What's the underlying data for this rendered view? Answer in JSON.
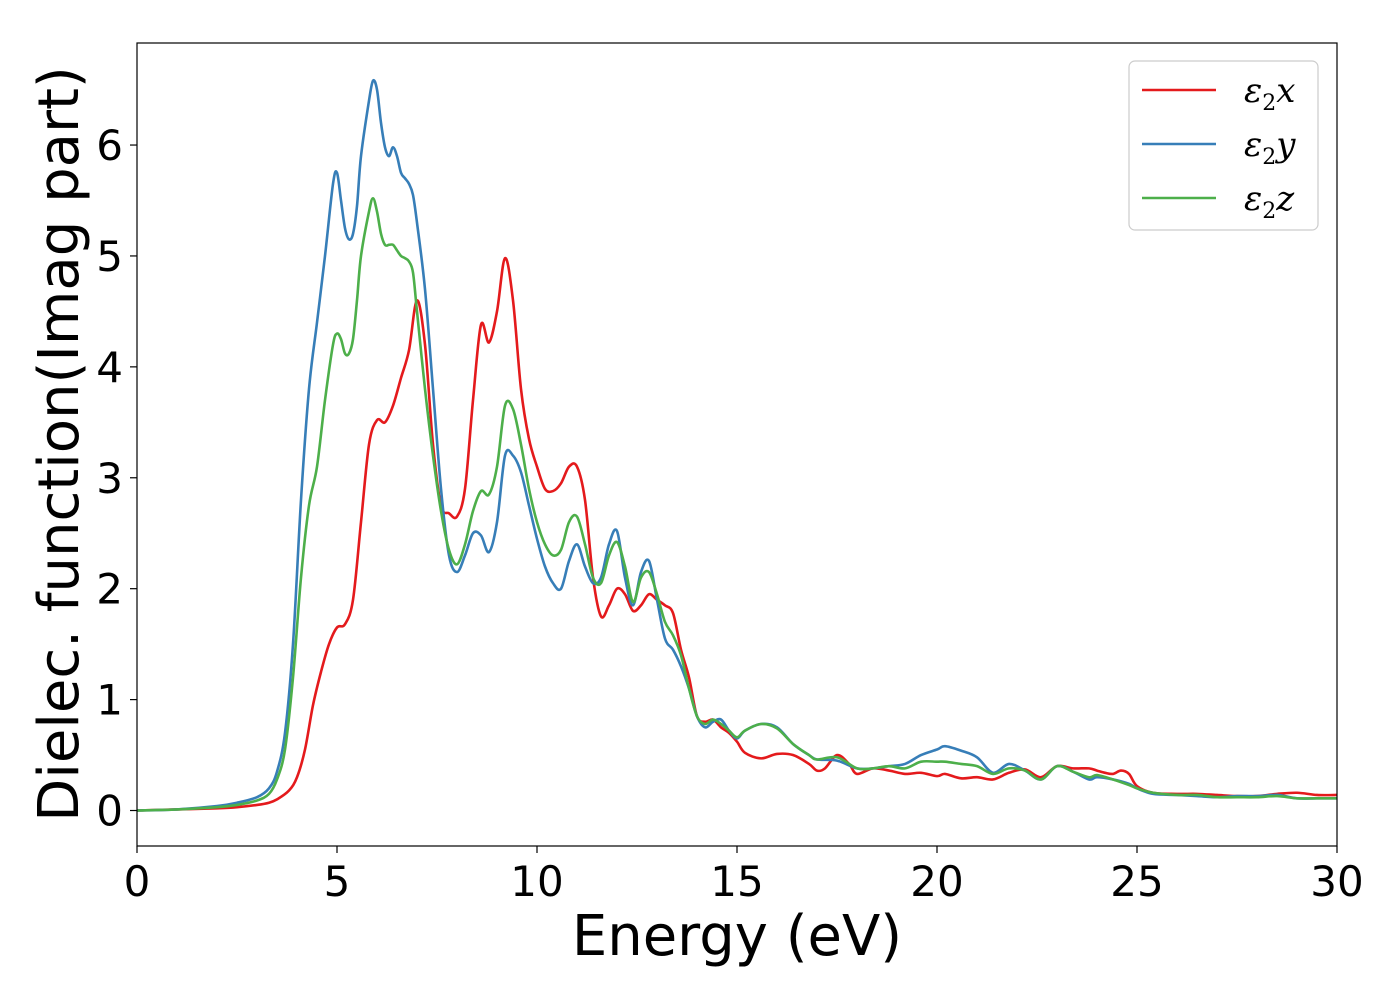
{
  "chart_data": {
    "type": "line",
    "title": "",
    "xlabel": "Energy (eV)",
    "ylabel": "Dielec. function(Imag part)",
    "xlim": [
      0,
      30
    ],
    "ylim": [
      -0.32,
      6.92
    ],
    "xticks": [
      0,
      5,
      10,
      15,
      20,
      25,
      30
    ],
    "yticks": [
      0,
      1,
      2,
      3,
      4,
      5,
      6
    ],
    "grid": false,
    "legend_position": "top-right",
    "series": [
      {
        "name": "ε2x",
        "legend_base": "ε",
        "legend_sub": "2",
        "legend_suffix": "x",
        "color": "#e41a1c",
        "x": [
          0,
          1,
          2,
          2.5,
          3,
          3.3,
          3.5,
          3.8,
          4.0,
          4.2,
          4.4,
          4.6,
          4.8,
          5.0,
          5.2,
          5.4,
          5.6,
          5.8,
          6.0,
          6.2,
          6.4,
          6.6,
          6.8,
          7.0,
          7.2,
          7.4,
          7.6,
          7.8,
          8.0,
          8.2,
          8.4,
          8.6,
          8.8,
          9.0,
          9.2,
          9.4,
          9.6,
          9.8,
          10.0,
          10.2,
          10.4,
          10.6,
          10.8,
          11.0,
          11.2,
          11.4,
          11.6,
          11.8,
          12.0,
          12.2,
          12.4,
          12.6,
          12.8,
          13.0,
          13.2,
          13.4,
          13.6,
          13.8,
          14.0,
          14.2,
          14.4,
          14.6,
          14.8,
          15.0,
          15.2,
          15.6,
          16.0,
          16.4,
          16.8,
          17.0,
          17.2,
          17.5,
          17.8,
          18.0,
          18.4,
          18.8,
          19.2,
          19.6,
          20.0,
          20.2,
          20.6,
          21.0,
          21.4,
          21.8,
          22.2,
          22.6,
          23.0,
          23.4,
          23.8,
          24.0,
          24.2,
          24.4,
          24.6,
          24.8,
          25.0,
          25.4,
          26.0,
          26.5,
          27.0,
          27.5,
          28.0,
          28.5,
          29.0,
          29.5,
          30.0
        ],
        "y": [
          0.0,
          0.01,
          0.02,
          0.03,
          0.05,
          0.07,
          0.1,
          0.18,
          0.3,
          0.55,
          0.95,
          1.25,
          1.5,
          1.65,
          1.68,
          1.9,
          2.6,
          3.3,
          3.52,
          3.5,
          3.65,
          3.9,
          4.15,
          4.6,
          4.2,
          3.3,
          2.75,
          2.68,
          2.65,
          2.9,
          3.7,
          4.38,
          4.22,
          4.5,
          4.98,
          4.6,
          3.8,
          3.35,
          3.1,
          2.9,
          2.88,
          2.95,
          3.1,
          3.1,
          2.8,
          2.1,
          1.75,
          1.85,
          2.0,
          1.95,
          1.8,
          1.85,
          1.95,
          1.9,
          1.85,
          1.78,
          1.45,
          1.2,
          0.85,
          0.8,
          0.82,
          0.75,
          0.7,
          0.62,
          0.52,
          0.47,
          0.51,
          0.5,
          0.42,
          0.36,
          0.38,
          0.5,
          0.42,
          0.33,
          0.38,
          0.36,
          0.33,
          0.34,
          0.31,
          0.33,
          0.29,
          0.3,
          0.28,
          0.34,
          0.37,
          0.3,
          0.4,
          0.38,
          0.38,
          0.36,
          0.34,
          0.33,
          0.36,
          0.33,
          0.22,
          0.16,
          0.15,
          0.15,
          0.14,
          0.13,
          0.13,
          0.15,
          0.16,
          0.14,
          0.14
        ]
      },
      {
        "name": "ε2y",
        "legend_base": "ε",
        "legend_sub": "2",
        "legend_suffix": "y",
        "color": "#377eb8",
        "x": [
          0,
          1,
          2,
          2.5,
          3,
          3.3,
          3.5,
          3.7,
          3.9,
          4.1,
          4.3,
          4.5,
          4.7,
          4.9,
          5.0,
          5.1,
          5.2,
          5.3,
          5.4,
          5.5,
          5.6,
          5.8,
          5.9,
          6.0,
          6.1,
          6.2,
          6.3,
          6.4,
          6.5,
          6.6,
          6.7,
          6.8,
          6.9,
          7.0,
          7.2,
          7.4,
          7.6,
          7.8,
          8.0,
          8.2,
          8.4,
          8.6,
          8.8,
          9.0,
          9.2,
          9.4,
          9.6,
          9.8,
          10.0,
          10.2,
          10.4,
          10.6,
          10.8,
          11.0,
          11.2,
          11.4,
          11.6,
          11.8,
          12.0,
          12.2,
          12.4,
          12.6,
          12.8,
          13.0,
          13.2,
          13.4,
          13.6,
          13.8,
          14.0,
          14.2,
          14.4,
          14.6,
          14.8,
          15.0,
          15.2,
          15.6,
          16.0,
          16.4,
          16.8,
          17.0,
          17.5,
          18.0,
          18.4,
          18.8,
          19.2,
          19.6,
          20.0,
          20.2,
          20.6,
          21.0,
          21.4,
          21.8,
          22.2,
          22.6,
          23.0,
          23.4,
          23.8,
          24.0,
          24.4,
          24.8,
          25.0,
          25.4,
          26.0,
          26.5,
          27.0,
          27.5,
          28.0,
          28.5,
          29.0,
          29.5,
          30.0
        ],
        "y": [
          0.0,
          0.01,
          0.04,
          0.07,
          0.12,
          0.2,
          0.35,
          0.7,
          1.5,
          2.8,
          3.8,
          4.4,
          5.0,
          5.65,
          5.75,
          5.5,
          5.25,
          5.15,
          5.2,
          5.45,
          5.9,
          6.4,
          6.58,
          6.5,
          6.2,
          5.98,
          5.9,
          5.98,
          5.9,
          5.75,
          5.7,
          5.65,
          5.55,
          5.3,
          4.7,
          3.8,
          2.9,
          2.3,
          2.15,
          2.3,
          2.5,
          2.48,
          2.33,
          2.6,
          3.2,
          3.2,
          3.05,
          2.75,
          2.45,
          2.2,
          2.05,
          2.0,
          2.25,
          2.4,
          2.2,
          2.05,
          2.1,
          2.4,
          2.52,
          2.1,
          1.85,
          2.15,
          2.25,
          1.9,
          1.55,
          1.45,
          1.3,
          1.1,
          0.85,
          0.75,
          0.8,
          0.82,
          0.72,
          0.65,
          0.72,
          0.78,
          0.75,
          0.6,
          0.5,
          0.46,
          0.45,
          0.38,
          0.38,
          0.4,
          0.42,
          0.5,
          0.55,
          0.58,
          0.54,
          0.48,
          0.34,
          0.42,
          0.36,
          0.28,
          0.4,
          0.35,
          0.28,
          0.3,
          0.28,
          0.24,
          0.2,
          0.15,
          0.14,
          0.13,
          0.12,
          0.13,
          0.13,
          0.14,
          0.11,
          0.11,
          0.11
        ]
      },
      {
        "name": "ε2z",
        "legend_base": "ε",
        "legend_sub": "2",
        "legend_suffix": "z",
        "color": "#4daf4a",
        "x": [
          0,
          1,
          2,
          2.5,
          3,
          3.3,
          3.5,
          3.7,
          3.9,
          4.1,
          4.3,
          4.5,
          4.7,
          4.9,
          5.0,
          5.1,
          5.2,
          5.3,
          5.4,
          5.5,
          5.6,
          5.8,
          5.9,
          6.0,
          6.1,
          6.2,
          6.3,
          6.4,
          6.5,
          6.6,
          6.7,
          6.8,
          6.9,
          7.0,
          7.2,
          7.4,
          7.6,
          7.8,
          8.0,
          8.2,
          8.4,
          8.6,
          8.8,
          9.0,
          9.2,
          9.4,
          9.6,
          9.8,
          10.0,
          10.2,
          10.4,
          10.6,
          10.8,
          11.0,
          11.2,
          11.4,
          11.6,
          11.8,
          12.0,
          12.2,
          12.4,
          12.6,
          12.8,
          13.0,
          13.2,
          13.4,
          13.6,
          13.8,
          14.0,
          14.2,
          14.4,
          14.6,
          14.8,
          15.0,
          15.2,
          15.6,
          16.0,
          16.4,
          16.8,
          17.0,
          17.5,
          18.0,
          18.4,
          18.8,
          19.2,
          19.6,
          20.0,
          20.2,
          20.6,
          21.0,
          21.4,
          21.8,
          22.2,
          22.6,
          23.0,
          23.4,
          23.8,
          24.0,
          24.4,
          24.8,
          25.0,
          25.4,
          26.0,
          26.5,
          27.0,
          27.5,
          28.0,
          28.5,
          29.0,
          29.5,
          30.0
        ],
        "y": [
          0.0,
          0.01,
          0.03,
          0.05,
          0.09,
          0.15,
          0.28,
          0.55,
          1.2,
          2.1,
          2.75,
          3.1,
          3.7,
          4.2,
          4.3,
          4.25,
          4.12,
          4.12,
          4.25,
          4.6,
          5.0,
          5.4,
          5.52,
          5.4,
          5.2,
          5.1,
          5.1,
          5.1,
          5.05,
          5.0,
          4.98,
          4.95,
          4.85,
          4.5,
          3.8,
          3.2,
          2.7,
          2.35,
          2.22,
          2.4,
          2.7,
          2.88,
          2.85,
          3.1,
          3.65,
          3.62,
          3.3,
          2.9,
          2.6,
          2.4,
          2.3,
          2.35,
          2.6,
          2.65,
          2.4,
          2.1,
          2.05,
          2.3,
          2.42,
          2.2,
          1.88,
          2.1,
          2.15,
          1.95,
          1.7,
          1.58,
          1.4,
          1.1,
          0.85,
          0.78,
          0.82,
          0.78,
          0.72,
          0.66,
          0.72,
          0.78,
          0.74,
          0.6,
          0.5,
          0.46,
          0.48,
          0.38,
          0.38,
          0.4,
          0.38,
          0.44,
          0.44,
          0.44,
          0.42,
          0.4,
          0.33,
          0.38,
          0.36,
          0.28,
          0.4,
          0.35,
          0.3,
          0.32,
          0.28,
          0.23,
          0.2,
          0.16,
          0.14,
          0.14,
          0.12,
          0.12,
          0.12,
          0.13,
          0.11,
          0.11,
          0.11
        ]
      }
    ]
  }
}
